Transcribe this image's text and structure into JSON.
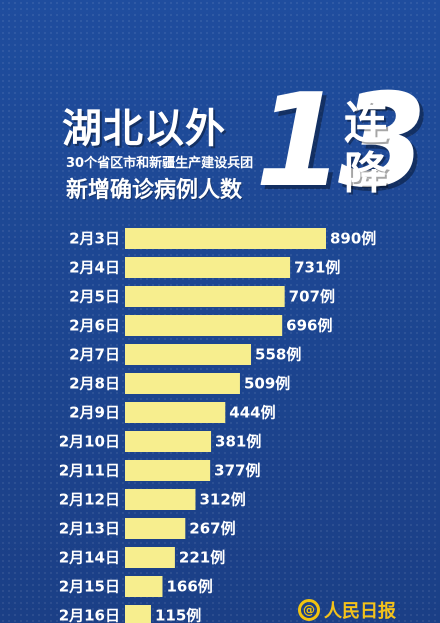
{
  "header": {
    "title_main": "湖北以外",
    "subtitle_line1": "30个省区市和新疆生产建设兵团",
    "subtitle_line2": "新增确诊病例人数",
    "big_number": "13",
    "side_char_1": "连",
    "side_char_2": "降"
  },
  "logo": {
    "icon": "at-icon",
    "text": "人民日报"
  },
  "colors": {
    "background": "#1d4793",
    "bar": "#f7ee8e",
    "text": "#ffffff",
    "logo": "#f4c21a"
  },
  "chart_data": {
    "type": "bar",
    "orientation": "horizontal",
    "title": "",
    "xlabel": "",
    "ylabel": "",
    "categories": [
      "2月3日",
      "2月4日",
      "2月5日",
      "2月6日",
      "2月7日",
      "2月8日",
      "2月9日",
      "2月10日",
      "2月11日",
      "2月12日",
      "2月13日",
      "2月14日",
      "2月15日",
      "2月16日"
    ],
    "values": [
      890,
      731,
      707,
      696,
      558,
      509,
      444,
      381,
      377,
      312,
      267,
      221,
      166,
      115
    ],
    "value_labels": [
      "890例",
      "731例",
      "707例",
      "696例",
      "558例",
      "509例",
      "444例",
      "381例",
      "377例",
      "312例",
      "267例",
      "221例",
      "166例",
      "115例"
    ],
    "xlim": [
      0,
      890
    ],
    "grid": false,
    "legend": "none"
  }
}
